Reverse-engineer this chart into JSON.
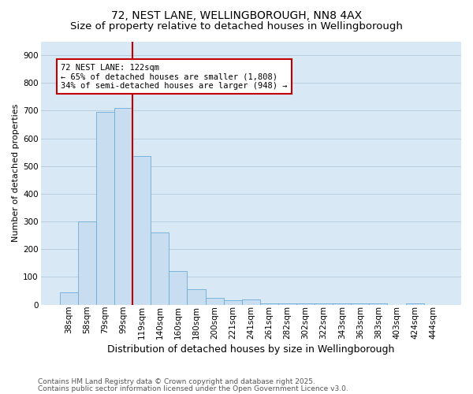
{
  "title1": "72, NEST LANE, WELLINGBOROUGH, NN8 4AX",
  "title2": "Size of property relative to detached houses in Wellingborough",
  "xlabel": "Distribution of detached houses by size in Wellingborough",
  "ylabel": "Number of detached properties",
  "categories": [
    "38sqm",
    "58sqm",
    "79sqm",
    "99sqm",
    "119sqm",
    "140sqm",
    "160sqm",
    "180sqm",
    "200sqm",
    "221sqm",
    "241sqm",
    "261sqm",
    "282sqm",
    "302sqm",
    "322sqm",
    "343sqm",
    "363sqm",
    "383sqm",
    "403sqm",
    "424sqm",
    "444sqm"
  ],
  "values": [
    45,
    300,
    695,
    710,
    535,
    260,
    120,
    55,
    25,
    15,
    20,
    5,
    5,
    5,
    5,
    5,
    5,
    3,
    0,
    5,
    0
  ],
  "bar_color": "#c9ddf0",
  "bar_edge_color": "#6baed6",
  "vline_color": "#c00000",
  "vline_x": 3.5,
  "annotation_text": "72 NEST LANE: 122sqm\n← 65% of detached houses are smaller (1,808)\n34% of semi-detached houses are larger (948) →",
  "annotation_box_edgecolor": "#c00000",
  "annotation_facecolor": "#ffffff",
  "ylim": [
    0,
    950
  ],
  "yticks": [
    0,
    100,
    200,
    300,
    400,
    500,
    600,
    700,
    800,
    900
  ],
  "grid_color": "#b8cfe0",
  "bg_color": "#d9e8f5",
  "footer1": "Contains HM Land Registry data © Crown copyright and database right 2025.",
  "footer2": "Contains public sector information licensed under the Open Government Licence v3.0.",
  "title1_fontsize": 10,
  "title2_fontsize": 9.5,
  "xlabel_fontsize": 9,
  "ylabel_fontsize": 8,
  "tick_fontsize": 7.5,
  "footer_fontsize": 6.5,
  "annotation_fontsize": 7.5
}
